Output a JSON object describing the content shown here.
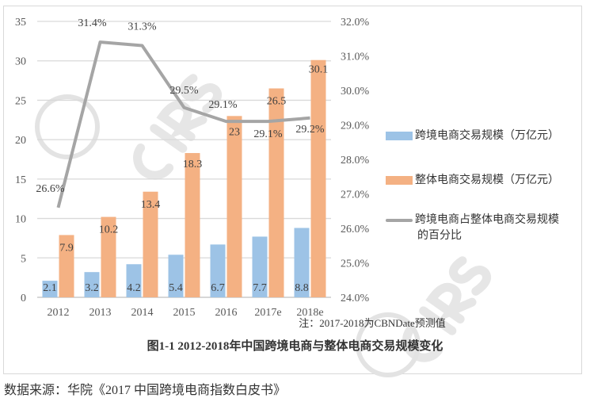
{
  "chart_data": {
    "type": "bar+line",
    "categories": [
      "2012",
      "2013",
      "2014",
      "2015",
      "2016",
      "2017e",
      "2018e"
    ],
    "series": [
      {
        "name": "跨境电商交易规模（万亿元）",
        "type": "bar",
        "axis": "left",
        "color": "#9dc3e6",
        "values": [
          2.1,
          3.2,
          4.2,
          5.4,
          6.7,
          7.7,
          8.8
        ],
        "labels": [
          "2.1",
          "3.2",
          "4.2",
          "5.4",
          "6.7",
          "7.7",
          "8.8"
        ]
      },
      {
        "name": "整体电商交易规模（万亿元）",
        "type": "bar",
        "axis": "left",
        "color": "#f4b183",
        "values": [
          7.9,
          10.2,
          13.4,
          18.3,
          23,
          26.5,
          30.1
        ],
        "labels": [
          "7.9",
          "10.2",
          "13.4",
          "18.3",
          "23",
          "26.5",
          "30.1"
        ]
      },
      {
        "name": "跨境电商占整体电商交易规模的百分比",
        "type": "line",
        "axis": "right",
        "color": "#a5a5a5",
        "values": [
          26.6,
          31.4,
          31.3,
          29.5,
          29.1,
          29.1,
          29.2
        ],
        "labels": [
          "26.6%",
          "31.4%",
          "31.3%",
          "29.5%",
          "29.1%",
          "29.1%",
          "29.2%"
        ]
      }
    ],
    "left_axis": {
      "ylim": [
        0,
        35
      ],
      "ticks": [
        "0",
        "5",
        "10",
        "15",
        "20",
        "25",
        "30",
        "35"
      ]
    },
    "right_axis": {
      "ylim": [
        24,
        32
      ],
      "ticks": [
        "24.0%",
        "25.0%",
        "26.0%",
        "27.0%",
        "28.0%",
        "29.0%",
        "30.0%",
        "31.0%",
        "32.0%"
      ]
    },
    "grid": true,
    "legend_placement": "right",
    "legend": {
      "line_label_1": "跨境电商占整体电商交易规模",
      "line_label_2": "的百分比"
    },
    "note": "注：2017-2018为CBNDate预测值",
    "title": "图1-1 2012-2018年中国跨境电商与整体电商交易规模变化"
  },
  "source": "数据来源：华院《2017 中国跨境电商指数白皮书》",
  "watermark": "CIRS"
}
